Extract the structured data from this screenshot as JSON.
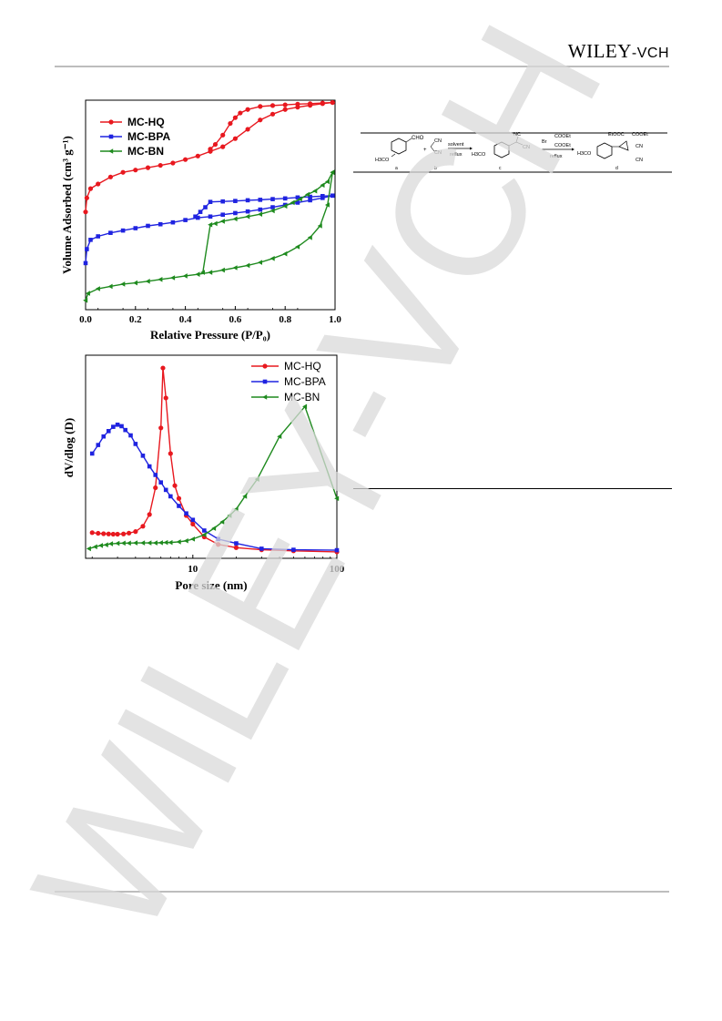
{
  "header": {
    "brand_main": "WILEY",
    "brand_sub": "-VCH"
  },
  "watermark": {
    "text": "WILEY-VCH",
    "color": "#d9d9d9"
  },
  "colors": {
    "red": "#e8181f",
    "blue": "#1f23e0",
    "green": "#1e8a1e"
  },
  "scheme": {
    "labels": [
      "a",
      "b",
      "c",
      "d"
    ],
    "step1_top": "solvent",
    "step1_bottom": "reflux",
    "step2_bottom": "reflux",
    "reagent_a_group": "CHO",
    "reagent_a_sub": "H3CO",
    "reagent_b": [
      "CN",
      "CN"
    ],
    "plus": "+",
    "product_c_sub": "H3CO",
    "product_c_groups": [
      "NC",
      "CN"
    ],
    "reagent2": [
      "Br",
      "COOEt",
      "COOEt"
    ],
    "product_d_sub": "H3CO",
    "product_d_groups": [
      "EtOOC",
      "COOEt",
      "CN",
      "CN"
    ]
  },
  "chart_data": [
    {
      "type": "line",
      "ylabel": "Volume Adsorbed (cm³ g⁻¹)",
      "xlabel": "Relative Pressure (P/P₀)",
      "xlim": [
        0.0,
        1.0
      ],
      "xticks": [
        "0.0",
        "0.2",
        "0.4",
        "0.6",
        "0.8",
        "1.0"
      ],
      "y_ticks_shown": false,
      "legend": "top-left",
      "series": [
        {
          "name": "MC-HQ",
          "color": "#e8181f",
          "marker": "circle",
          "adsorption": [
            [
              0.0,
              0.62
            ],
            [
              0.005,
              0.68
            ],
            [
              0.02,
              0.72
            ],
            [
              0.05,
              0.74
            ],
            [
              0.1,
              0.77
            ],
            [
              0.15,
              0.79
            ],
            [
              0.2,
              0.8
            ],
            [
              0.25,
              0.81
            ],
            [
              0.3,
              0.82
            ],
            [
              0.35,
              0.83
            ],
            [
              0.4,
              0.845
            ],
            [
              0.45,
              0.86
            ],
            [
              0.5,
              0.88
            ],
            [
              0.55,
              0.9
            ],
            [
              0.6,
              0.935
            ],
            [
              0.65,
              0.975
            ],
            [
              0.7,
              1.015
            ],
            [
              0.75,
              1.04
            ],
            [
              0.8,
              1.06
            ],
            [
              0.85,
              1.07
            ],
            [
              0.9,
              1.078
            ],
            [
              0.95,
              1.085
            ],
            [
              0.99,
              1.09
            ]
          ],
          "desorption": [
            [
              0.99,
              1.09
            ],
            [
              0.95,
              1.088
            ],
            [
              0.9,
              1.085
            ],
            [
              0.85,
              1.083
            ],
            [
              0.8,
              1.08
            ],
            [
              0.75,
              1.077
            ],
            [
              0.7,
              1.073
            ],
            [
              0.65,
              1.06
            ],
            [
              0.62,
              1.045
            ],
            [
              0.6,
              1.025
            ],
            [
              0.58,
              1.0
            ],
            [
              0.55,
              0.95
            ],
            [
              0.52,
              0.91
            ],
            [
              0.5,
              0.89
            ]
          ]
        },
        {
          "name": "MC-BPA",
          "color": "#1f23e0",
          "marker": "square",
          "adsorption": [
            [
              0.0,
              0.4
            ],
            [
              0.005,
              0.46
            ],
            [
              0.02,
              0.5
            ],
            [
              0.05,
              0.515
            ],
            [
              0.1,
              0.53
            ],
            [
              0.15,
              0.54
            ],
            [
              0.2,
              0.55
            ],
            [
              0.25,
              0.56
            ],
            [
              0.3,
              0.567
            ],
            [
              0.35,
              0.575
            ],
            [
              0.4,
              0.585
            ],
            [
              0.45,
              0.595
            ],
            [
              0.5,
              0.6
            ],
            [
              0.55,
              0.608
            ],
            [
              0.6,
              0.615
            ],
            [
              0.65,
              0.622
            ],
            [
              0.7,
              0.63
            ],
            [
              0.75,
              0.64
            ],
            [
              0.8,
              0.65
            ],
            [
              0.85,
              0.66
            ],
            [
              0.9,
              0.67
            ],
            [
              0.95,
              0.68
            ],
            [
              0.99,
              0.69
            ]
          ],
          "desorption": [
            [
              0.99,
              0.69
            ],
            [
              0.95,
              0.688
            ],
            [
              0.9,
              0.685
            ],
            [
              0.85,
              0.682
            ],
            [
              0.8,
              0.678
            ],
            [
              0.75,
              0.675
            ],
            [
              0.7,
              0.672
            ],
            [
              0.65,
              0.67
            ],
            [
              0.6,
              0.667
            ],
            [
              0.55,
              0.665
            ],
            [
              0.5,
              0.663
            ],
            [
              0.48,
              0.64
            ],
            [
              0.46,
              0.62
            ],
            [
              0.44,
              0.6
            ]
          ]
        },
        {
          "name": "MC-BN",
          "color": "#1e8a1e",
          "marker": "triangle",
          "adsorption": [
            [
              0.0,
              0.24
            ],
            [
              0.01,
              0.27
            ],
            [
              0.05,
              0.29
            ],
            [
              0.1,
              0.3
            ],
            [
              0.15,
              0.31
            ],
            [
              0.2,
              0.315
            ],
            [
              0.25,
              0.322
            ],
            [
              0.3,
              0.33
            ],
            [
              0.35,
              0.337
            ],
            [
              0.4,
              0.345
            ],
            [
              0.45,
              0.352
            ],
            [
              0.5,
              0.36
            ],
            [
              0.55,
              0.37
            ],
            [
              0.6,
              0.38
            ],
            [
              0.65,
              0.39
            ],
            [
              0.7,
              0.403
            ],
            [
              0.75,
              0.42
            ],
            [
              0.8,
              0.44
            ],
            [
              0.85,
              0.47
            ],
            [
              0.9,
              0.51
            ],
            [
              0.94,
              0.56
            ],
            [
              0.97,
              0.65
            ],
            [
              0.99,
              0.79
            ]
          ],
          "desorption": [
            [
              0.99,
              0.79
            ],
            [
              0.97,
              0.75
            ],
            [
              0.95,
              0.735
            ],
            [
              0.92,
              0.71
            ],
            [
              0.89,
              0.695
            ],
            [
              0.86,
              0.675
            ],
            [
              0.83,
              0.66
            ],
            [
              0.8,
              0.645
            ],
            [
              0.75,
              0.625
            ],
            [
              0.7,
              0.61
            ],
            [
              0.65,
              0.6
            ],
            [
              0.6,
              0.59
            ],
            [
              0.55,
              0.58
            ],
            [
              0.52,
              0.57
            ],
            [
              0.5,
              0.565
            ],
            [
              0.47,
              0.36
            ]
          ]
        }
      ]
    },
    {
      "type": "line",
      "ylabel": "dV/dlog (D)",
      "xlabel": "Pore size (nm)",
      "xscale": "log",
      "xlim": [
        1.8,
        100
      ],
      "xticks": [
        "10",
        "100"
      ],
      "y_ticks_shown": false,
      "legend": "top-right",
      "series": [
        {
          "name": "MC-HQ",
          "color": "#e8181f",
          "marker": "circle",
          "points": [
            [
              2.0,
              0.17
            ],
            [
              2.2,
              0.167
            ],
            [
              2.4,
              0.165
            ],
            [
              2.6,
              0.164
            ],
            [
              2.8,
              0.163
            ],
            [
              3.0,
              0.163
            ],
            [
              3.3,
              0.164
            ],
            [
              3.6,
              0.168
            ],
            [
              4.0,
              0.175
            ],
            [
              4.5,
              0.2
            ],
            [
              5.0,
              0.255
            ],
            [
              5.5,
              0.38
            ],
            [
              6.0,
              0.66
            ],
            [
              6.2,
              0.94
            ],
            [
              6.5,
              0.8
            ],
            [
              7.0,
              0.54
            ],
            [
              7.5,
              0.39
            ],
            [
              8.0,
              0.33
            ],
            [
              9.0,
              0.25
            ],
            [
              10.0,
              0.21
            ],
            [
              12.0,
              0.15
            ],
            [
              15.0,
              0.115
            ],
            [
              20.0,
              0.1
            ],
            [
              30.0,
              0.09
            ],
            [
              50.0,
              0.085
            ],
            [
              100.0,
              0.08
            ]
          ]
        },
        {
          "name": "MC-BPA",
          "color": "#1f23e0",
          "marker": "square",
          "points": [
            [
              2.0,
              0.54
            ],
            [
              2.2,
              0.58
            ],
            [
              2.4,
              0.62
            ],
            [
              2.6,
              0.645
            ],
            [
              2.8,
              0.665
            ],
            [
              3.0,
              0.675
            ],
            [
              3.2,
              0.668
            ],
            [
              3.4,
              0.65
            ],
            [
              3.7,
              0.625
            ],
            [
              4.0,
              0.585
            ],
            [
              4.5,
              0.53
            ],
            [
              5.0,
              0.48
            ],
            [
              5.5,
              0.44
            ],
            [
              6.0,
              0.405
            ],
            [
              6.5,
              0.37
            ],
            [
              7.0,
              0.34
            ],
            [
              8.0,
              0.295
            ],
            [
              9.0,
              0.26
            ],
            [
              10.0,
              0.23
            ],
            [
              12.0,
              0.18
            ],
            [
              15.0,
              0.14
            ],
            [
              20.0,
              0.12
            ],
            [
              30.0,
              0.095
            ],
            [
              50.0,
              0.09
            ],
            [
              100.0,
              0.088
            ]
          ]
        },
        {
          "name": "MC-BN",
          "color": "#1e8a1e",
          "marker": "triangle",
          "points": [
            [
              1.9,
              0.095
            ],
            [
              2.1,
              0.104
            ],
            [
              2.3,
              0.11
            ],
            [
              2.5,
              0.113
            ],
            [
              2.7,
              0.118
            ],
            [
              3.0,
              0.12
            ],
            [
              3.3,
              0.121
            ],
            [
              3.6,
              0.121
            ],
            [
              4.0,
              0.122
            ],
            [
              4.5,
              0.122
            ],
            [
              5.0,
              0.122
            ],
            [
              5.5,
              0.122
            ],
            [
              6.0,
              0.123
            ],
            [
              6.5,
              0.124
            ],
            [
              7.0,
              0.124
            ],
            [
              8.0,
              0.127
            ],
            [
              9.0,
              0.132
            ],
            [
              10.0,
              0.14
            ],
            [
              12.0,
              0.16
            ],
            [
              14.0,
              0.19
            ],
            [
              16.0,
              0.22
            ],
            [
              18.0,
              0.25
            ],
            [
              20.0,
              0.28
            ],
            [
              23.0,
              0.34
            ],
            [
              28.0,
              0.42
            ],
            [
              40.0,
              0.62
            ],
            [
              60.0,
              0.76
            ],
            [
              100.0,
              0.33
            ]
          ]
        }
      ]
    }
  ]
}
